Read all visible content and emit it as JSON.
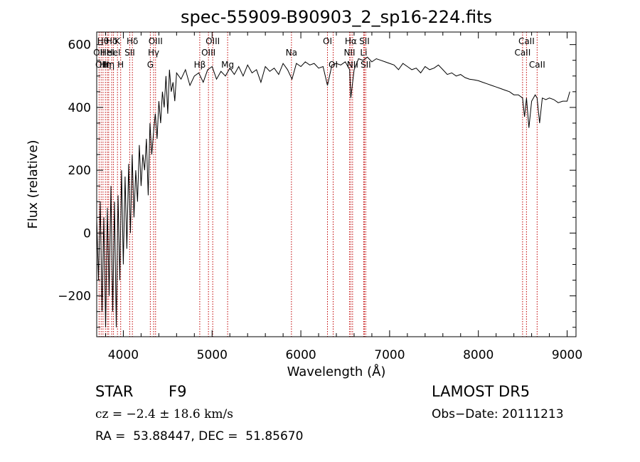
{
  "chart_data": {
    "type": "line",
    "title": "spec-55909-B90903_2_sp16-224.fits",
    "xlabel": "Wavelength (Å)",
    "ylabel": "Flux (relative)",
    "xlim": [
      3700,
      9100
    ],
    "ylim": [
      -330,
      640
    ],
    "xticks": [
      4000,
      5000,
      6000,
      7000,
      8000,
      9000
    ],
    "yticks": [
      -200,
      0,
      200,
      400,
      600
    ],
    "series": [
      {
        "x": [
          3700,
          3720,
          3740,
          3760,
          3780,
          3800,
          3820,
          3840,
          3860,
          3880,
          3900,
          3920,
          3940,
          3960,
          3980,
          4000,
          4020,
          4040,
          4060,
          4080,
          4100,
          4120,
          4140,
          4160,
          4180,
          4200,
          4220,
          4240,
          4260,
          4280,
          4300,
          4320,
          4340,
          4360,
          4380,
          4400,
          4420,
          4440,
          4460,
          4480,
          4500,
          4520,
          4540,
          4560,
          4580,
          4600,
          4650,
          4700,
          4750,
          4800,
          4850,
          4900,
          4950,
          5000,
          5050,
          5100,
          5150,
          5200,
          5250,
          5300,
          5350,
          5400,
          5450,
          5500,
          5550,
          5600,
          5650,
          5700,
          5750,
          5800,
          5850,
          5900,
          5950,
          6000,
          6050,
          6100,
          6150,
          6200,
          6250,
          6300,
          6350,
          6400,
          6450,
          6500,
          6550,
          6563,
          6600,
          6650,
          6700,
          6750,
          6800,
          6850,
          6900,
          6950,
          7000,
          7050,
          7100,
          7150,
          7200,
          7250,
          7300,
          7350,
          7400,
          7450,
          7500,
          7550,
          7600,
          7650,
          7700,
          7750,
          7800,
          7850,
          7900,
          7950,
          8000,
          8050,
          8100,
          8150,
          8200,
          8250,
          8300,
          8350,
          8400,
          8450,
          8498,
          8520,
          8542,
          8570,
          8600,
          8640,
          8662,
          8690,
          8720,
          8760,
          8800,
          8850,
          8900,
          8950,
          9000,
          9030
        ],
        "y": [
          50,
          -150,
          100,
          -250,
          50,
          -300,
          80,
          -200,
          150,
          -250,
          100,
          -300,
          120,
          -150,
          200,
          -100,
          180,
          -50,
          220,
          0,
          250,
          50,
          200,
          100,
          280,
          150,
          250,
          200,
          300,
          120,
          350,
          250,
          320,
          380,
          300,
          420,
          350,
          450,
          400,
          500,
          380,
          520,
          450,
          480,
          420,
          510,
          490,
          520,
          470,
          500,
          510,
          480,
          520,
          530,
          490,
          515,
          500,
          525,
          505,
          530,
          500,
          535,
          510,
          520,
          480,
          530,
          515,
          525,
          505,
          540,
          520,
          490,
          540,
          530,
          545,
          535,
          540,
          525,
          530,
          470,
          535,
          540,
          535,
          545,
          520,
          430,
          520,
          555,
          550,
          560,
          545,
          555,
          550,
          545,
          540,
          535,
          520,
          540,
          530,
          520,
          525,
          510,
          530,
          520,
          525,
          535,
          520,
          505,
          510,
          500,
          505,
          495,
          490,
          488,
          485,
          480,
          475,
          470,
          465,
          460,
          455,
          450,
          440,
          440,
          430,
          370,
          430,
          335,
          420,
          440,
          430,
          350,
          430,
          425,
          430,
          425,
          415,
          420,
          420,
          450
        ]
      }
    ],
    "lines": [
      {
        "w": 3727,
        "label": "OII",
        "row": 2
      },
      {
        "w": 3750,
        "label": "OII",
        "row": 3
      },
      {
        "w": 3771,
        "label": "Hθ",
        "row": 1
      },
      {
        "w": 3798,
        "label": "Hη",
        "row": 3
      },
      {
        "w": 3820,
        "label": "HeI",
        "row": 2
      },
      {
        "w": 3835,
        "label": "Hη",
        "row": 3
      },
      {
        "w": 3869,
        "label": "Hδ",
        "row": 1
      },
      {
        "w": 3889,
        "label": "HeI",
        "row": 2
      },
      {
        "w": 3934,
        "label": "K",
        "row": 1
      },
      {
        "w": 3970,
        "label": "H",
        "row": 3
      },
      {
        "w": 4072,
        "label": "SII",
        "row": 2
      },
      {
        "w": 4102,
        "label": "Hδ",
        "row": 1
      },
      {
        "w": 4304,
        "label": "G",
        "row": 3
      },
      {
        "w": 4341,
        "label": "Hγ",
        "row": 2
      },
      {
        "w": 4363,
        "label": "OIII",
        "row": 1
      },
      {
        "w": 4861,
        "label": "Hβ",
        "row": 3
      },
      {
        "w": 4959,
        "label": "OIII",
        "row": 2
      },
      {
        "w": 5007,
        "label": "OIII",
        "row": 1
      },
      {
        "w": 5175,
        "label": "Mg",
        "row": 3
      },
      {
        "w": 5894,
        "label": "Na",
        "row": 2
      },
      {
        "w": 6300,
        "label": "OI",
        "row": 1
      },
      {
        "w": 6364,
        "label": "OI",
        "row": 3
      },
      {
        "w": 6548,
        "label": "NII",
        "row": 2
      },
      {
        "w": 6563,
        "label": "Hα",
        "row": 1
      },
      {
        "w": 6583,
        "label": "NII",
        "row": 3
      },
      {
        "w": 6708,
        "label": "Li",
        "row": 2
      },
      {
        "w": 6716,
        "label": "SII",
        "row": 1
      },
      {
        "w": 6731,
        "label": "SII",
        "row": 3
      },
      {
        "w": 8498,
        "label": "CaII",
        "row": 2
      },
      {
        "w": 8542,
        "label": "CaII",
        "row": 1
      },
      {
        "w": 8662,
        "label": "CaII",
        "row": 3
      }
    ]
  },
  "info": {
    "object_class": "STAR",
    "subclass": "F9",
    "survey": "LAMOST DR5",
    "redshift": "cz = −2.4 ± 18.6 km/s",
    "obs_date": "Obs−Date: 20111213",
    "coords": "RA =  53.88447, DEC =  51.85670"
  },
  "colors": {
    "line_marker": "#c00000",
    "spectrum": "#000000"
  }
}
